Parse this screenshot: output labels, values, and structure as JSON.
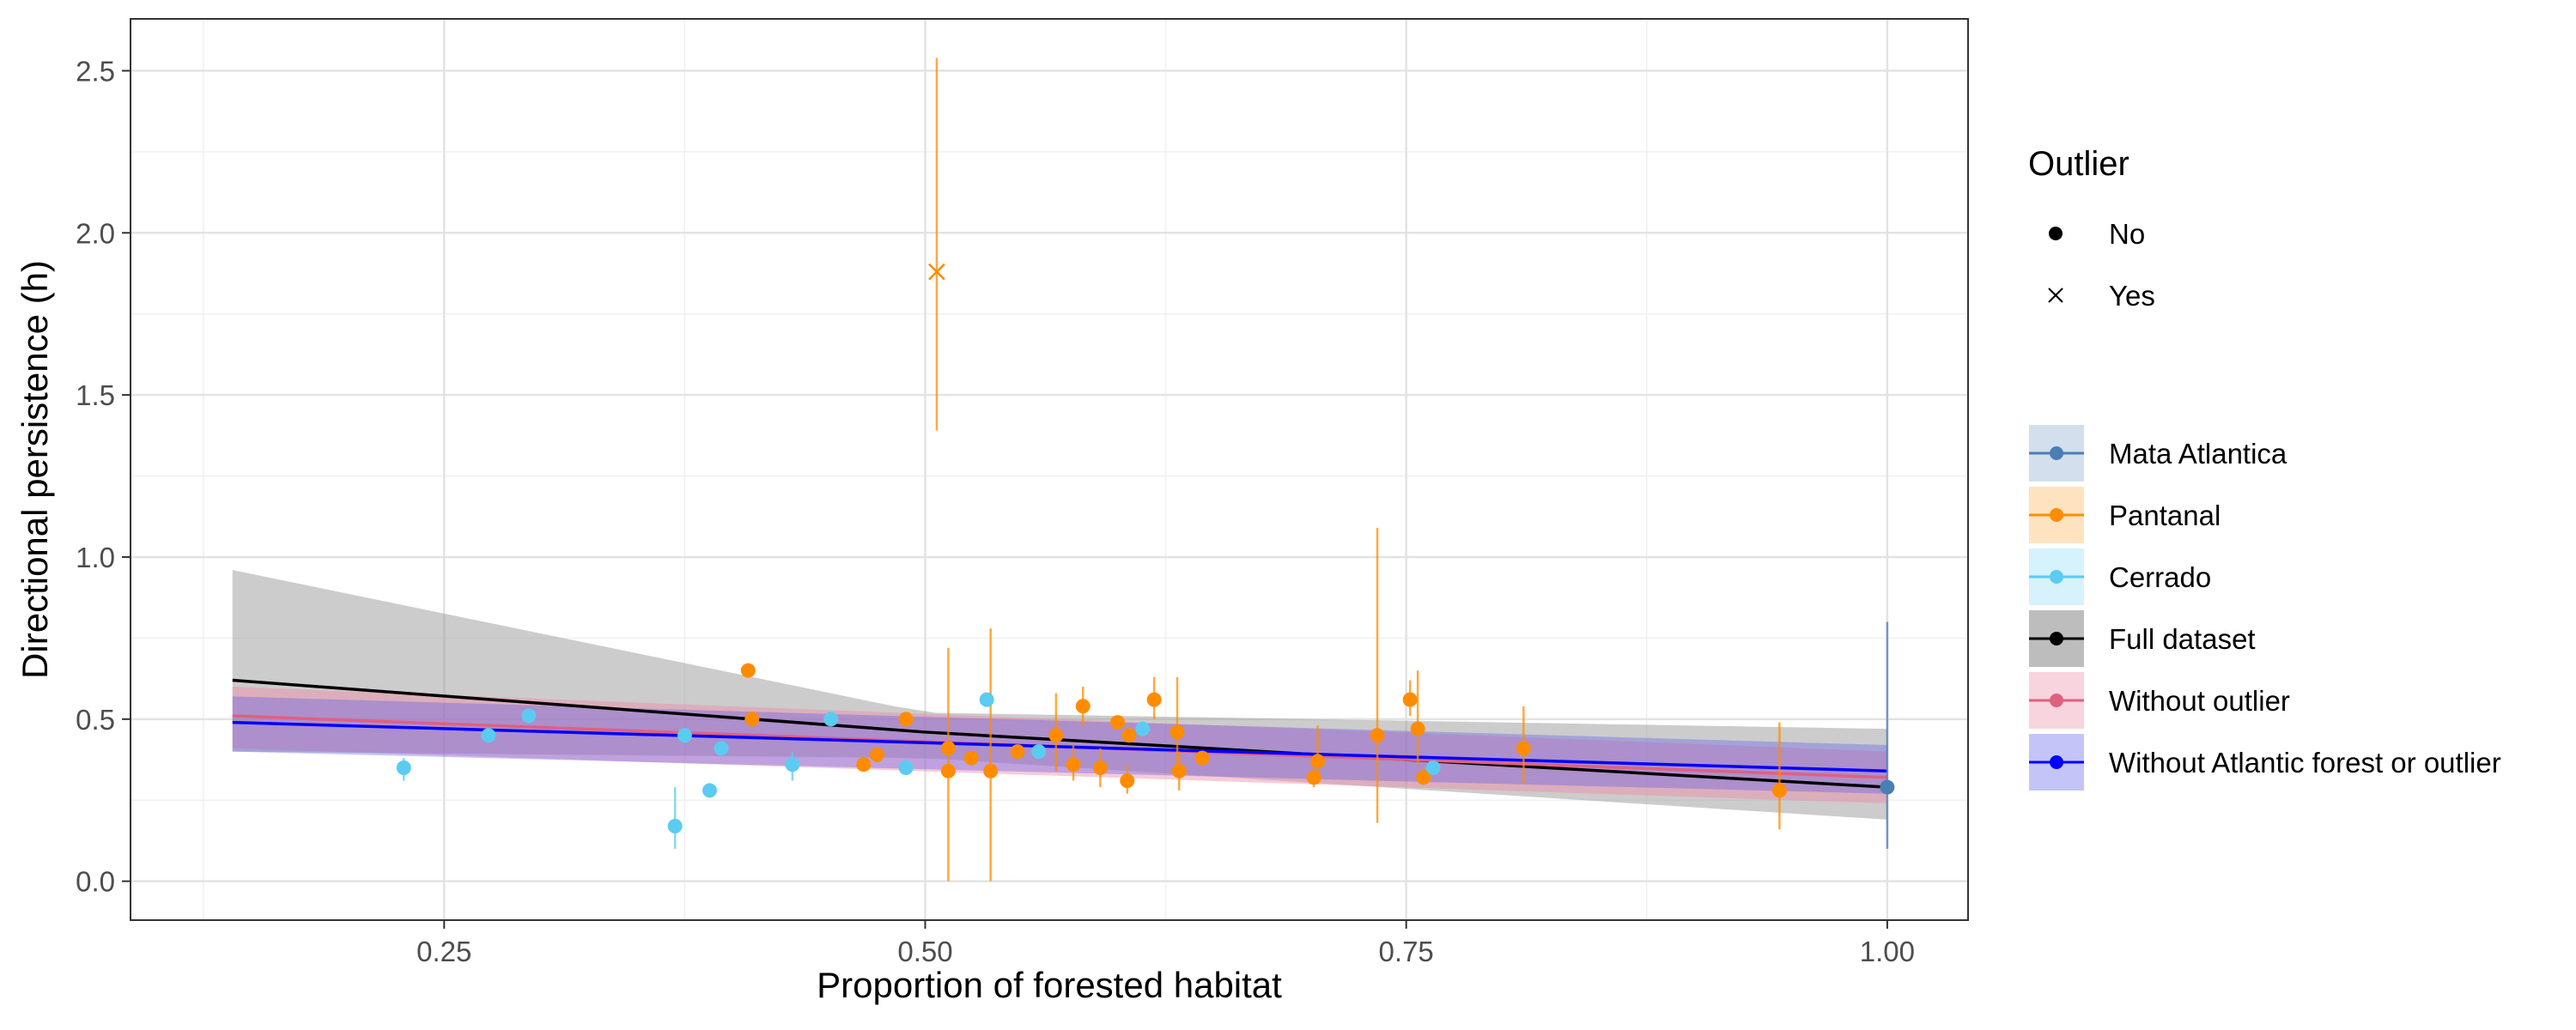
{
  "chart_data": {
    "type": "scatter",
    "title": "",
    "xlabel": "Proportion of forested habitat",
    "ylabel": "Directional persistence (h)",
    "xlim": [
      0.087,
      1.042
    ],
    "ylim": [
      -0.12,
      2.66
    ],
    "x_ticks": [
      0.25,
      0.5,
      0.75,
      1.0
    ],
    "x_tick_labels": [
      "0.25",
      "0.50",
      "0.75",
      "1.00"
    ],
    "y_ticks": [
      0.0,
      0.5,
      1.0,
      1.5,
      2.0,
      2.5
    ],
    "y_tick_labels": [
      "0.0",
      "0.5",
      "1.0",
      "1.5",
      "2.0",
      "2.5"
    ],
    "grid": true,
    "legend_position": "right",
    "legends": {
      "outlier": {
        "title": "Outlier",
        "items": [
          {
            "label": "No",
            "shape": "dot"
          },
          {
            "label": "Yes",
            "shape": "cross"
          }
        ]
      },
      "groups": {
        "items": [
          {
            "label": "Mata Atlantica",
            "color": "#4a7fb5",
            "fill": "#d3dfec"
          },
          {
            "label": "Pantanal",
            "color": "#ff8c00",
            "fill": "#ffe3c0"
          },
          {
            "label": "Cerrado",
            "color": "#5ccbf2",
            "fill": "#d6f2fc"
          },
          {
            "label": "Full dataset",
            "color": "#000000",
            "fill": "#bdbdbd"
          },
          {
            "label": "Without outlier",
            "color": "#e06080",
            "fill": "#f8d4de"
          },
          {
            "label": "Without Atlantic forest or outlier",
            "color": "#0000ff",
            "fill": "#c4c4f8"
          }
        ]
      }
    },
    "series": [
      {
        "name": "Mata Atlantica",
        "color": "#4a7fb5",
        "points": [
          {
            "x": 1.0,
            "y": 0.29,
            "lo": 0.1,
            "hi": 0.8,
            "outlier": false
          }
        ]
      },
      {
        "name": "Pantanal",
        "color": "#ff8c00",
        "points": [
          {
            "x": 0.506,
            "y": 1.88,
            "lo": 1.39,
            "hi": 2.54,
            "outlier": true
          },
          {
            "x": 0.408,
            "y": 0.65,
            "outlier": false
          },
          {
            "x": 0.41,
            "y": 0.5,
            "outlier": false
          },
          {
            "x": 0.468,
            "y": 0.36,
            "outlier": false
          },
          {
            "x": 0.475,
            "y": 0.39,
            "outlier": false
          },
          {
            "x": 0.49,
            "y": 0.5,
            "outlier": false
          },
          {
            "x": 0.512,
            "y": 0.41,
            "lo": 0.0,
            "hi": 0.72,
            "outlier": false
          },
          {
            "x": 0.512,
            "y": 0.34,
            "outlier": false
          },
          {
            "x": 0.524,
            "y": 0.38,
            "outlier": false
          },
          {
            "x": 0.534,
            "y": 0.34,
            "lo": 0.0,
            "hi": 0.78,
            "outlier": false
          },
          {
            "x": 0.548,
            "y": 0.4,
            "outlier": false
          },
          {
            "x": 0.568,
            "y": 0.45,
            "lo": 0.34,
            "hi": 0.58,
            "outlier": false
          },
          {
            "x": 0.577,
            "y": 0.36,
            "lo": 0.31,
            "hi": 0.42,
            "outlier": false
          },
          {
            "x": 0.582,
            "y": 0.54,
            "lo": 0.48,
            "hi": 0.6,
            "outlier": false
          },
          {
            "x": 0.591,
            "y": 0.35,
            "lo": 0.29,
            "hi": 0.41,
            "outlier": false
          },
          {
            "x": 0.6,
            "y": 0.49,
            "outlier": false
          },
          {
            "x": 0.605,
            "y": 0.31,
            "lo": 0.27,
            "hi": 0.36,
            "outlier": false
          },
          {
            "x": 0.606,
            "y": 0.45,
            "outlier": false
          },
          {
            "x": 0.619,
            "y": 0.56,
            "lo": 0.5,
            "hi": 0.63,
            "outlier": false
          },
          {
            "x": 0.631,
            "y": 0.46,
            "lo": 0.33,
            "hi": 0.63,
            "outlier": false
          },
          {
            "x": 0.632,
            "y": 0.34,
            "lo": 0.28,
            "hi": 0.4,
            "outlier": false
          },
          {
            "x": 0.644,
            "y": 0.38,
            "outlier": false
          },
          {
            "x": 0.702,
            "y": 0.32,
            "lo": 0.29,
            "hi": 0.36,
            "outlier": false
          },
          {
            "x": 0.704,
            "y": 0.37,
            "lo": 0.3,
            "hi": 0.48,
            "outlier": false
          },
          {
            "x": 0.735,
            "y": 0.45,
            "lo": 0.18,
            "hi": 1.09,
            "outlier": false
          },
          {
            "x": 0.752,
            "y": 0.56,
            "lo": 0.51,
            "hi": 0.62,
            "outlier": false
          },
          {
            "x": 0.756,
            "y": 0.47,
            "lo": 0.36,
            "hi": 0.65,
            "outlier": false
          },
          {
            "x": 0.759,
            "y": 0.32,
            "lo": 0.3,
            "hi": 0.35,
            "outlier": false
          },
          {
            "x": 0.811,
            "y": 0.41,
            "lo": 0.3,
            "hi": 0.54,
            "outlier": false
          },
          {
            "x": 0.944,
            "y": 0.28,
            "lo": 0.16,
            "hi": 0.49,
            "outlier": false
          }
        ]
      },
      {
        "name": "Cerrado",
        "color": "#5ccbf2",
        "points": [
          {
            "x": 0.229,
            "y": 0.35,
            "lo": 0.31,
            "hi": 0.38,
            "outlier": false
          },
          {
            "x": 0.273,
            "y": 0.45,
            "outlier": false
          },
          {
            "x": 0.294,
            "y": 0.51,
            "outlier": false
          },
          {
            "x": 0.37,
            "y": 0.17,
            "lo": 0.1,
            "hi": 0.29,
            "outlier": false
          },
          {
            "x": 0.375,
            "y": 0.45,
            "outlier": false
          },
          {
            "x": 0.388,
            "y": 0.28,
            "outlier": false
          },
          {
            "x": 0.394,
            "y": 0.41,
            "outlier": false
          },
          {
            "x": 0.431,
            "y": 0.36,
            "lo": 0.31,
            "hi": 0.4,
            "outlier": false
          },
          {
            "x": 0.451,
            "y": 0.5,
            "outlier": false
          },
          {
            "x": 0.49,
            "y": 0.35,
            "outlier": false
          },
          {
            "x": 0.532,
            "y": 0.56,
            "outlier": false
          },
          {
            "x": 0.559,
            "y": 0.4,
            "outlier": false
          },
          {
            "x": 0.613,
            "y": 0.47,
            "outlier": false
          },
          {
            "x": 0.764,
            "y": 0.35,
            "outlier": false
          }
        ]
      }
    ],
    "fits": [
      {
        "name": "Full dataset",
        "color": "#000000",
        "x": [
          0.14,
          0.5,
          1.0
        ],
        "y": [
          0.62,
          0.46,
          0.29
        ],
        "ci_low": [
          0.4,
          0.38,
          0.19
        ],
        "ci_high": [
          0.96,
          0.52,
          0.47
        ]
      },
      {
        "name": "Without outlier",
        "color": "#e06080",
        "x": [
          0.14,
          1.0
        ],
        "y": [
          0.51,
          0.32
        ],
        "ci_low": [
          0.41,
          0.24
        ],
        "ci_high": [
          0.6,
          0.4
        ]
      },
      {
        "name": "Without Atlantic forest or outlier",
        "color": "#0000ff",
        "x": [
          0.14,
          1.0
        ],
        "y": [
          0.49,
          0.34
        ],
        "ci_low": [
          0.4,
          0.27
        ],
        "ci_high": [
          0.57,
          0.42
        ]
      }
    ]
  }
}
